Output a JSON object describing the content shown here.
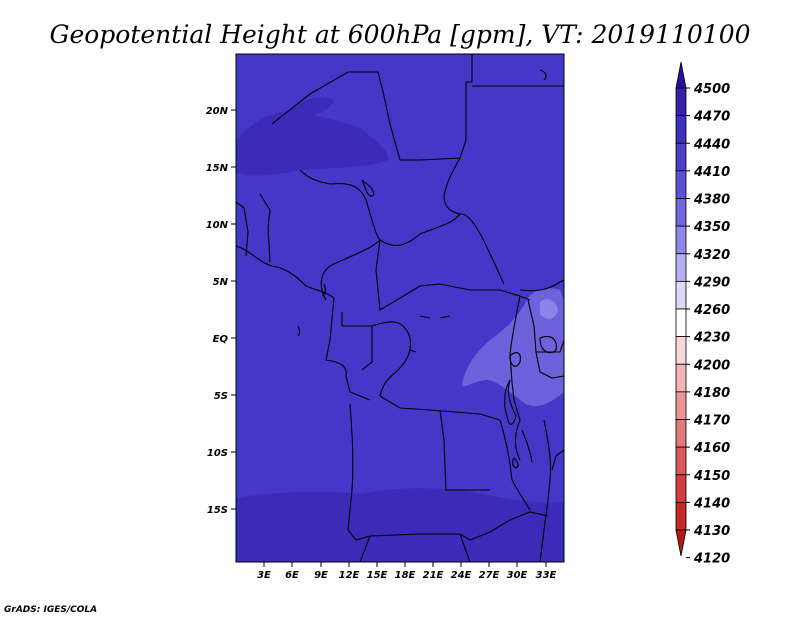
{
  "title": "Geopotential Height at 600hPa [gpm], VT: 2019110100",
  "credit": "GrADS: IGES/COLA",
  "map": {
    "lat_labels": [
      "20N",
      "15N",
      "10N",
      "5N",
      "EQ",
      "5S",
      "10S",
      "15S"
    ],
    "lon_labels": [
      "3E",
      "6E",
      "9E",
      "12E",
      "15E",
      "18E",
      "21E",
      "24E",
      "27E",
      "30E",
      "33E"
    ],
    "colors": {
      "base": "#4338C8",
      "dark": "#3A2CB8",
      "light": "#6C62DC",
      "lighter": "#8C84E8"
    }
  },
  "colorbar": {
    "levels": [
      "4500",
      "4470",
      "4440",
      "4410",
      "4380",
      "4350",
      "4320",
      "4290",
      "4260",
      "4230",
      "4200",
      "4180",
      "4170",
      "4160",
      "4150",
      "4140",
      "4130",
      "4120"
    ],
    "colors": [
      "#2A10A0",
      "#3520A8",
      "#3D30B8",
      "#4A40C6",
      "#5A52D6",
      "#7068E0",
      "#8E88EA",
      "#B4B0F2",
      "#DCDAF8",
      "#FFFFFF",
      "#F8D8D8",
      "#F2B4B4",
      "#EA9696",
      "#E27878",
      "#DA5A5A",
      "#D03E3E",
      "#C42828",
      "#B41A1A"
    ]
  }
}
